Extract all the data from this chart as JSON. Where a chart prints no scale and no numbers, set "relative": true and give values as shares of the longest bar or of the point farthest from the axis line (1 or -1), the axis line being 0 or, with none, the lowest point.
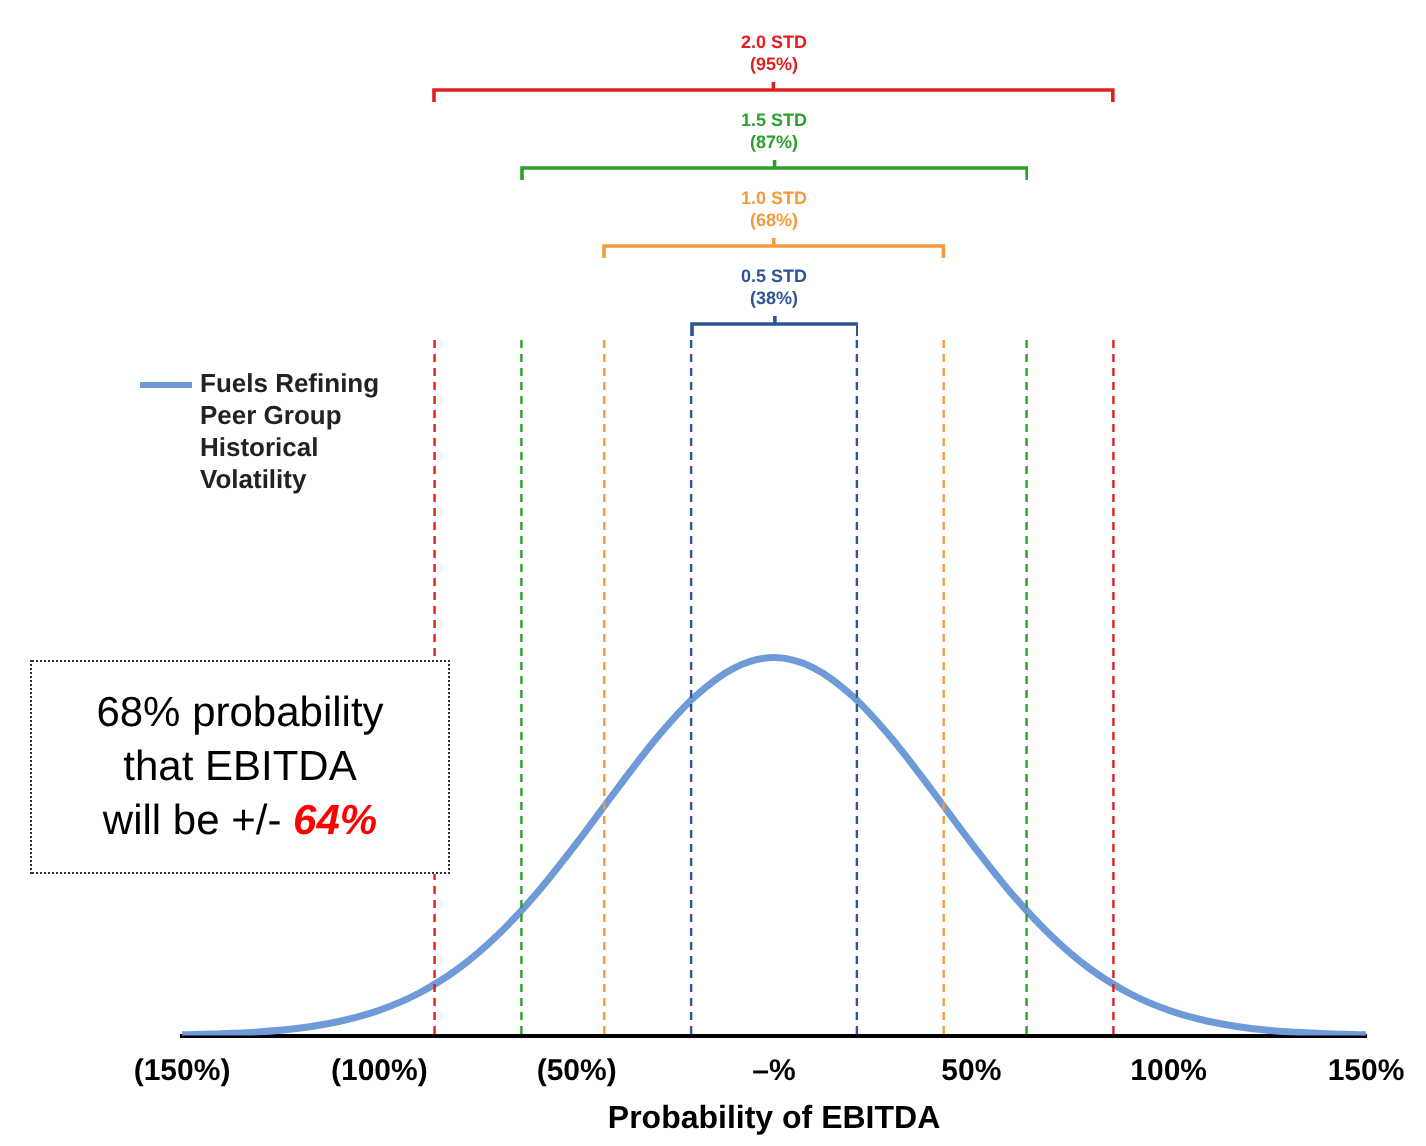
{
  "chart_data": {
    "type": "line",
    "relative": true,
    "xlabel": "Probability of EBITDA",
    "x": [
      -150,
      -140,
      -130,
      -120,
      -110,
      -100,
      -90,
      -80,
      -70,
      -60,
      -50,
      -40,
      -30,
      -20,
      -10,
      0,
      10,
      20,
      30,
      40,
      50,
      60,
      70,
      80,
      90,
      100,
      110,
      120,
      130,
      140,
      150
    ],
    "series": [
      {
        "name": "Fuels Refining Peer Group Historical Volatility",
        "color": "#6f9ad8",
        "values": [
          0.002,
          0.005,
          0.01,
          0.02,
          0.038,
          0.067,
          0.112,
          0.177,
          0.266,
          0.378,
          0.509,
          0.649,
          0.784,
          0.897,
          0.973,
          1,
          0.973,
          0.897,
          0.784,
          0.649,
          0.509,
          0.378,
          0.266,
          0.177,
          0.112,
          0.067,
          0.038,
          0.02,
          0.01,
          0.005,
          0.002
        ]
      }
    ],
    "xlim": [
      -150,
      150
    ],
    "xticks": [
      {
        "value": -150,
        "label": "(150%)"
      },
      {
        "value": -100,
        "label": "(100%)"
      },
      {
        "value": -50,
        "label": "(50%)"
      },
      {
        "value": 0,
        "label": "–%"
      },
      {
        "value": 50,
        "label": "50%"
      },
      {
        "value": 100,
        "label": "100%"
      },
      {
        "value": 150,
        "label": "150%"
      }
    ],
    "ref_lines": [
      {
        "axis": "x",
        "value": -86,
        "label": null,
        "color": "#e02020",
        "line_style": "dashed"
      },
      {
        "axis": "x",
        "value": -64,
        "label": null,
        "color": "#2ca02c",
        "line_style": "dashed"
      },
      {
        "axis": "x",
        "value": -43,
        "label": null,
        "color": "#f59a3c",
        "line_style": "dashed"
      },
      {
        "axis": "x",
        "value": -21,
        "label": null,
        "color": "#2f5597",
        "line_style": "dashed"
      },
      {
        "axis": "x",
        "value": 21,
        "label": null,
        "color": "#2f5597",
        "line_style": "dashed"
      },
      {
        "axis": "x",
        "value": 43,
        "label": null,
        "color": "#f59a3c",
        "line_style": "dashed"
      },
      {
        "axis": "x",
        "value": 64,
        "label": null,
        "color": "#2ca02c",
        "line_style": "dashed"
      },
      {
        "axis": "x",
        "value": 86,
        "label": null,
        "color": "#e02020",
        "line_style": "dashed"
      }
    ],
    "annotations": [
      "2.0 STD\n(95%)",
      "1.5 STD\n(87%)",
      "1.0 STD\n(68%)",
      "0.5 STD\n(38%)",
      "68% probability\nthat EBITDA\nwill be +/- 64%"
    ],
    "legend": "top left",
    "grid": false,
    "marker": "none",
    "line_style": "solid"
  }
}
